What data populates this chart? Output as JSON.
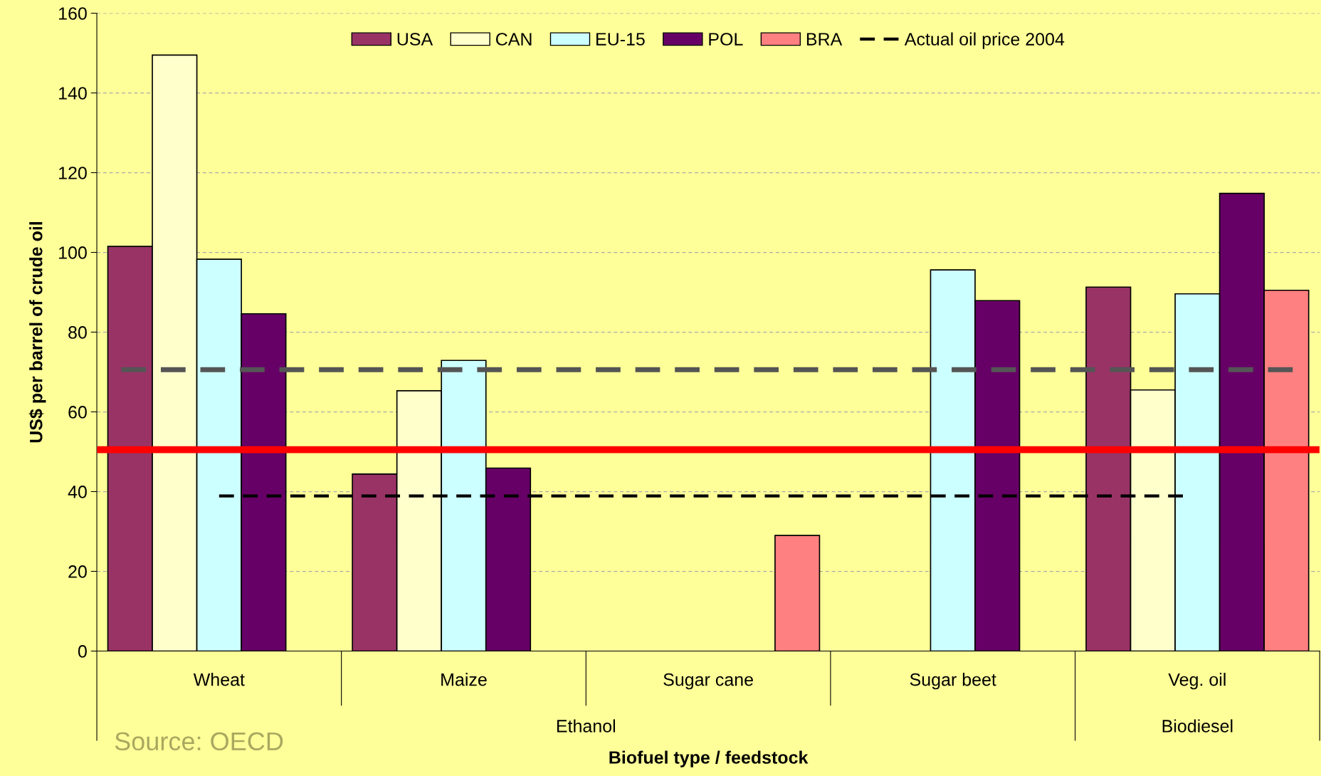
{
  "chart_data": {
    "type": "bar",
    "xlabel": "Biofuel type / feedstock",
    "ylabel": "US$ per barrel of crude oil",
    "categories": [
      "Wheat",
      "Maize",
      "Sugar cane",
      "Sugar beet",
      "Veg. oil"
    ],
    "series": [
      {
        "name": "USA",
        "color": "#993366",
        "values": [
          101.5,
          44.4,
          null,
          null,
          91.3
        ]
      },
      {
        "name": "CAN",
        "color": "#ffffcc",
        "values": [
          149.5,
          65.3,
          null,
          null,
          65.5
        ]
      },
      {
        "name": "EU-15",
        "color": "#ccffff",
        "values": [
          98.3,
          72.9,
          null,
          95.6,
          89.6
        ]
      },
      {
        "name": "POL",
        "color": "#660066",
        "values": [
          84.6,
          45.9,
          null,
          87.9,
          114.8
        ]
      },
      {
        "name": "BRA",
        "color": "#ff8080",
        "values": [
          null,
          null,
          29.0,
          null,
          90.5
        ]
      }
    ],
    "ylim": [
      0,
      160
    ],
    "yticks": [
      0,
      20,
      40,
      60,
      80,
      100,
      120,
      140,
      160
    ],
    "grid": "y",
    "legend": "top",
    "ref_lines": [
      {
        "axis": "y",
        "value": 70.6,
        "color": "#555555",
        "line_style": "dashed"
      },
      {
        "axis": "y",
        "value": 50.5,
        "color": "#ff0000",
        "line_style": "solid"
      },
      {
        "axis": "y",
        "value": 38.9,
        "label": "Actual oil price 2004",
        "color": "#000000",
        "line_style": "dashed"
      }
    ],
    "annotations": [
      "Ethanol",
      "Biodiesel",
      "Source: OECD"
    ]
  }
}
